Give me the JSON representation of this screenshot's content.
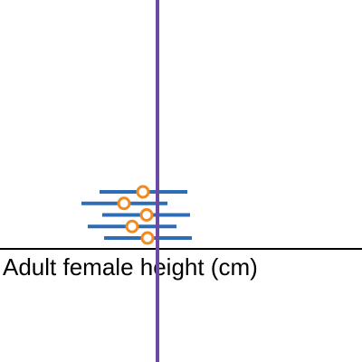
{
  "chart_data": {
    "type": "interval",
    "x_label": "Adult female height (cm)",
    "xlim": [
      0,
      400
    ],
    "intervals": [
      {
        "lower": 110,
        "upper": 207,
        "mean": 158
      },
      {
        "lower": 90,
        "upper": 185,
        "mean": 137
      },
      {
        "lower": 113,
        "upper": 210,
        "mean": 162
      },
      {
        "lower": 97,
        "upper": 195,
        "mean": 146
      },
      {
        "lower": 115,
        "upper": 212,
        "mean": 163
      }
    ],
    "population_mean": 174,
    "interval_color": "#2e6db4",
    "mean_color": "#f28a22",
    "population_color": "#6a4aa5"
  }
}
